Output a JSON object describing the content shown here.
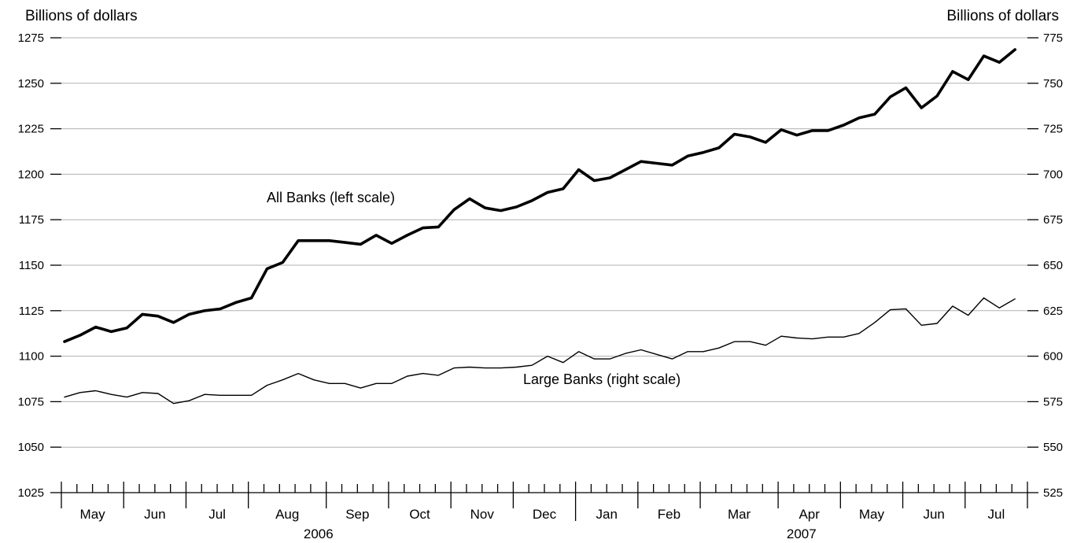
{
  "chart_data": {
    "type": "line",
    "left_axis": {
      "label": "Billions of dollars",
      "ylim": [
        1025,
        1275
      ],
      "ticks": [
        "1025",
        "1050",
        "1075",
        "1100",
        "1125",
        "1150",
        "1175",
        "1200",
        "1225",
        "1250",
        "1275"
      ]
    },
    "right_axis": {
      "label": "Billions of dollars",
      "ylim": [
        525,
        775
      ],
      "ticks": [
        "525",
        "550",
        "575",
        "600",
        "625",
        "650",
        "675",
        "700",
        "725",
        "750",
        "775"
      ]
    },
    "grid": true,
    "x_axis": {
      "months": [
        {
          "label": "May",
          "weeks": 4,
          "year": "2006"
        },
        {
          "label": "Jun",
          "weeks": 4,
          "year": "2006"
        },
        {
          "label": "Jul",
          "weeks": 4,
          "year": "2006"
        },
        {
          "label": "Aug",
          "weeks": 5,
          "year": "2006"
        },
        {
          "label": "Sep",
          "weeks": 4,
          "year": "2006"
        },
        {
          "label": "Oct",
          "weeks": 4,
          "year": "2006"
        },
        {
          "label": "Nov",
          "weeks": 4,
          "year": "2006"
        },
        {
          "label": "Dec",
          "weeks": 4,
          "year": "2006"
        },
        {
          "label": "Jan",
          "weeks": 4,
          "year": "2007"
        },
        {
          "label": "Feb",
          "weeks": 4,
          "year": "2007"
        },
        {
          "label": "Mar",
          "weeks": 5,
          "year": "2007"
        },
        {
          "label": "Apr",
          "weeks": 4,
          "year": "2007"
        },
        {
          "label": "May",
          "weeks": 4,
          "year": "2007"
        },
        {
          "label": "Jun",
          "weeks": 4,
          "year": "2007"
        },
        {
          "label": "Jul",
          "weeks": 4,
          "year": "2007"
        }
      ],
      "years": [
        {
          "label": "2006",
          "first_month": 0,
          "last_month": 7
        },
        {
          "label": "2007",
          "first_month": 8,
          "last_month": 14
        }
      ],
      "first_data_week": 0.2
    },
    "series": [
      {
        "name": "All Banks (left scale)",
        "axis": "left",
        "line": "bold",
        "values": [
          1108,
          1111.5,
          1116,
          1113.5,
          1115.5,
          1123,
          1122,
          1118.5,
          1123,
          1125,
          1126,
          1129.5,
          1132,
          1148,
          1151.5,
          1163.5,
          1163.5,
          1163.5,
          1162.5,
          1161.5,
          1166.5,
          1162,
          1166.5,
          1170.5,
          1171,
          1180.5,
          1186.5,
          1181.5,
          1180,
          1182,
          1185.5,
          1190,
          1192,
          1202.5,
          1196.5,
          1198,
          1202.5,
          1207,
          1206,
          1205,
          1210,
          1212,
          1214.5,
          1222,
          1220.5,
          1217.5,
          1224.5,
          1221.5,
          1224,
          1224,
          1227,
          1231,
          1233,
          1242.5,
          1247.5,
          1236.5,
          1243,
          1256.5,
          1252,
          1265,
          1261.5,
          1268.5
        ]
      },
      {
        "name": "Large Banks (right scale)",
        "axis": "right",
        "line": "thin",
        "values": [
          577.5,
          580,
          581,
          579,
          577.5,
          580,
          579.5,
          574,
          575.5,
          579,
          578.5,
          578.5,
          578.5,
          584,
          587,
          590.5,
          587,
          585,
          585,
          582.5,
          585,
          585,
          589,
          590.5,
          589.5,
          593.5,
          594,
          593.5,
          593.5,
          594,
          595,
          600,
          596.5,
          602.5,
          598.5,
          598.5,
          601.5,
          603.5,
          601,
          598.5,
          602.5,
          602.5,
          604.5,
          608,
          608,
          606,
          611,
          610,
          609.5,
          610.5,
          610.5,
          612.5,
          618.5,
          625.5,
          626,
          617,
          618,
          627.5,
          622.5,
          632,
          626.5,
          631.5
        ]
      }
    ]
  }
}
